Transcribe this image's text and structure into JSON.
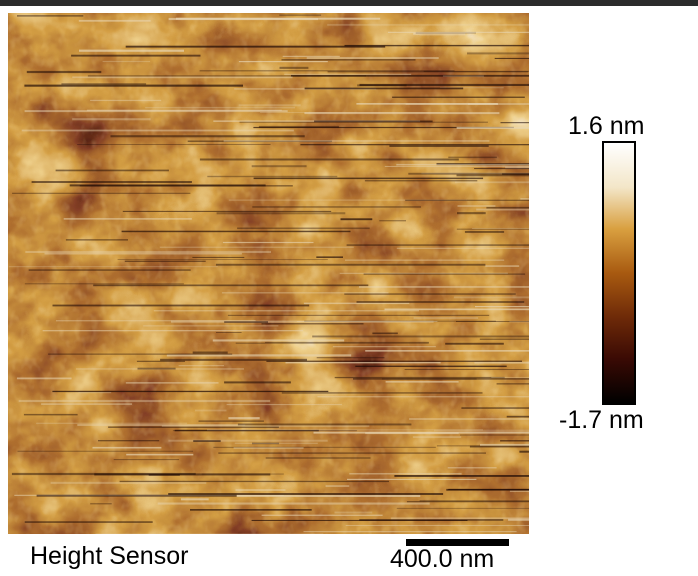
{
  "image": {
    "channel": "Height Sensor",
    "scale_bar_label": "400.0 nm"
  },
  "colorbar": {
    "max_label": "1.6 nm",
    "min_label": "-1.7 nm",
    "colors": [
      "#000000",
      "#3a0a04",
      "#6e2a08",
      "#a85a10",
      "#d9a040",
      "#f3e6c8",
      "#ffffff"
    ]
  }
}
